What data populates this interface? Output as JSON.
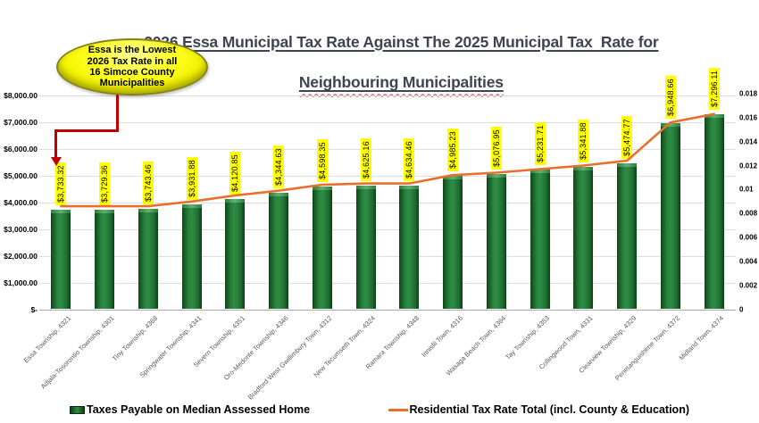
{
  "title": {
    "line1": "2026 Essa Municipal Tax Rate Against The 2025 Municipal Tax  Rate for",
    "line2": "Neighbouring Municipalities"
  },
  "callout": {
    "text": "Essa is the Lowest\n2026 Tax Rate in all\n16 Simcoe County\nMunicipalities"
  },
  "colors": {
    "bar_green": "#1E7232",
    "line_orange": "#E8702C",
    "label_background": "#FFFF00",
    "callout_yellow": "#FFFF00",
    "arrow_red": "#C00000",
    "title_text": "#3E4551"
  },
  "chart_data": {
    "type": "bar",
    "title": "2026 Essa Municipal Tax Rate Against The 2025 Municipal Tax Rate for Neighbouring Municipalities",
    "categories": [
      "Essa Township, 4321",
      "Adjala-Tosorontio Township, 4301",
      "Tiny Township, 4368",
      "Springwater Township, 4341",
      "Severn Township, 4351",
      "Oro-Medonte Township, 4346",
      "Bradford West Gwillimbury Town, 4312",
      "New Tecumseth Town, 4324",
      "Ramara Township, 4348",
      "Innisfil Town, 4316",
      "Wasaga Beach Town, 4364",
      "Tay Township, 4353",
      "Collingwood Town, 4331",
      "Clearview Township, 4329",
      "Penetanguishene Town, 4372",
      "Midland Town, 4374"
    ],
    "series": [
      {
        "name": "Taxes Payable on Median Assessed Home",
        "type": "bar",
        "axis": "left",
        "color": "#1E7232",
        "values": [
          3733.32,
          3729.36,
          3743.46,
          3931.88,
          4120.85,
          4344.63,
          4598.35,
          4625.16,
          4634.46,
          4985.23,
          5076.95,
          5231.71,
          5341.88,
          5474.77,
          6948.66,
          7296.11
        ],
        "labels": [
          "$3,733.32",
          "$3,729.36",
          "$3,743.46",
          "$3,931.88",
          "$4,120.85",
          "$4,344.63",
          "$4,598.35",
          "$4,625.16",
          "$4,634.46",
          "$4,985.23",
          "$5,076.95",
          "$5,231.71",
          "$5,341.88",
          "$5,474.77",
          "$6,948.66",
          "$7,296.11"
        ]
      },
      {
        "name": "Residential Tax Rate Total (incl. County & Education)",
        "type": "line",
        "axis": "right",
        "color": "#E8702C",
        "values": [
          0.0086,
          0.0086,
          0.0086,
          0.009,
          0.0095,
          0.0099,
          0.0104,
          0.0105,
          0.0105,
          0.0112,
          0.0114,
          0.0117,
          0.012,
          0.0124,
          0.0156,
          0.0163
        ]
      }
    ],
    "left_axis": {
      "ticks": [
        "$8,000.00",
        "$7,000.00",
        "$6,000.00",
        "$5,000.00",
        "$4,000.00",
        "$3,000.00",
        "$2,000.00",
        "$1,000.00",
        "$-"
      ],
      "min": 0,
      "max": 8000
    },
    "right_axis": {
      "ticks": [
        "0.018",
        "0.016",
        "0.014",
        "0.012",
        "0.01",
        "0.008",
        "0.006",
        "0.004",
        "0.002",
        "0"
      ],
      "min": 0,
      "max": 0.018
    },
    "grid": true,
    "legend_position": "bottom"
  }
}
